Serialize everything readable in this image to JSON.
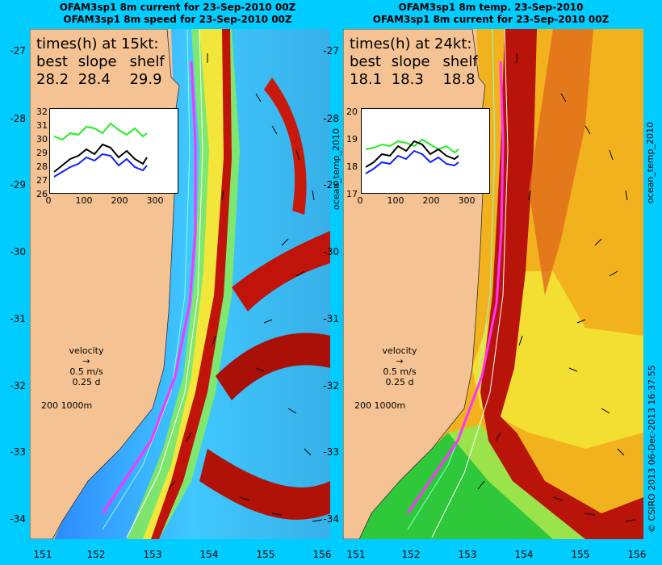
{
  "left_panel": {
    "title_line1": "OFAM3sp1 8m current for 23-Sep-2010 00Z",
    "title_line2": "OFAM3sp1 8m speed for 23-Sep-2010 00Z",
    "times_header": "times(h) at 15kt:",
    "labels": [
      "best",
      "slope",
      "shelf"
    ],
    "values": [
      "28.2",
      "28.4",
      "29.9"
    ],
    "inset_y_ticks": [
      "32",
      "31",
      "30",
      "29",
      "28",
      "27",
      "26"
    ],
    "inset_x_ticks": [
      "0",
      "100",
      "200",
      "300"
    ],
    "side_label": "ocean_temp_2010",
    "velocity_label": "velocity",
    "velocity_speed": "0.5 m/s",
    "velocity_time": "0.25 d",
    "depth_scale": "200  1000m"
  },
  "right_panel": {
    "title_line1": "OFAM3sp1 8m temp. 23-Sep-2010",
    "title_line2": "OFAM3sp1 8m current for 23-Sep-2010 00Z",
    "times_header": "times(h) at 24kt:",
    "labels": [
      "best",
      "slope",
      "shelf"
    ],
    "values": [
      "18.1",
      "18.3",
      "18.8"
    ],
    "inset_y_ticks": [
      "20",
      "19",
      "18",
      "17"
    ],
    "inset_x_ticks": [
      "0",
      "100",
      "200",
      "300"
    ],
    "side_label": "ocean_temp_2010",
    "velocity_label": "velocity",
    "velocity_speed": "0.5 m/s",
    "velocity_time": "0.25 d",
    "depth_scale": "200  1000m"
  },
  "latitude_ticks": [
    "-27",
    "-28",
    "-29",
    "-30",
    "-31",
    "-32",
    "-33",
    "-34"
  ],
  "longitude_ticks": [
    "151",
    "152",
    "153",
    "154",
    "155",
    "156"
  ],
  "right_edge_text": "© CSIRO 2013   06-Dec-2013 16:37:55",
  "colors": {
    "background": "#00ccff",
    "land": "#f5c393",
    "route": "#ff33ff"
  }
}
